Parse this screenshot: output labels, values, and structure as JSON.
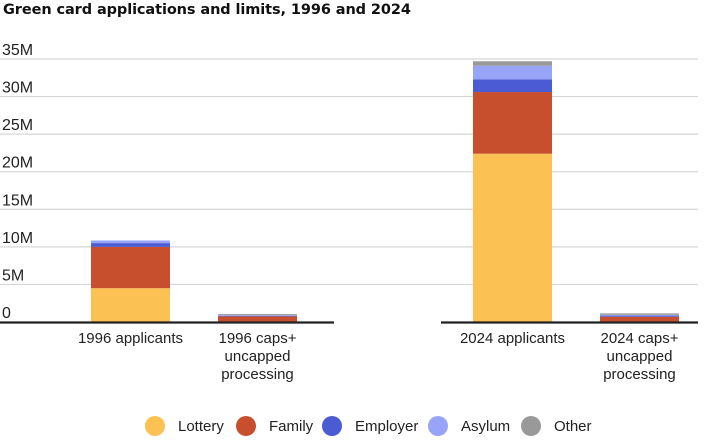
{
  "chart_data": {
    "type": "bar",
    "stacked": true,
    "title": "Green card applications and limits, 1996 and 2024",
    "xlabel": "",
    "ylabel": "",
    "ylim": [
      0,
      35
    ],
    "yticks": [
      0,
      5,
      10,
      15,
      20,
      25,
      30,
      35
    ],
    "ytick_labels": [
      "0",
      "5M",
      "10M",
      "15M",
      "20M",
      "25M",
      "30M",
      "35M"
    ],
    "grid": true,
    "legend_position": "bottom",
    "categories": [
      "1996 applicants",
      "1996 caps+ uncapped processing",
      "2024 applicants",
      "2024 caps+ uncapped processing"
    ],
    "category_lines": [
      [
        "1996 applicants"
      ],
      [
        "1996 caps+",
        "uncapped",
        "processing"
      ],
      [
        "2024 applicants"
      ],
      [
        "2024 caps+",
        "uncapped",
        "processing"
      ]
    ],
    "series": [
      {
        "name": "Lottery",
        "color": "#fcc153",
        "values": [
          4.5,
          0.0,
          22.4,
          0.0
        ]
      },
      {
        "name": "Family",
        "color": "#c84f2e",
        "values": [
          5.5,
          0.75,
          8.2,
          0.7
        ]
      },
      {
        "name": "Employer",
        "color": "#4a5bd4",
        "values": [
          0.5,
          0.1,
          1.7,
          0.15
        ]
      },
      {
        "name": "Asylum",
        "color": "#97a4f8",
        "values": [
          0.35,
          0.05,
          1.8,
          0.1
        ]
      },
      {
        "name": "Other",
        "color": "#999999",
        "values": [
          0.0,
          0.15,
          0.6,
          0.2
        ]
      }
    ],
    "units": "millions"
  }
}
